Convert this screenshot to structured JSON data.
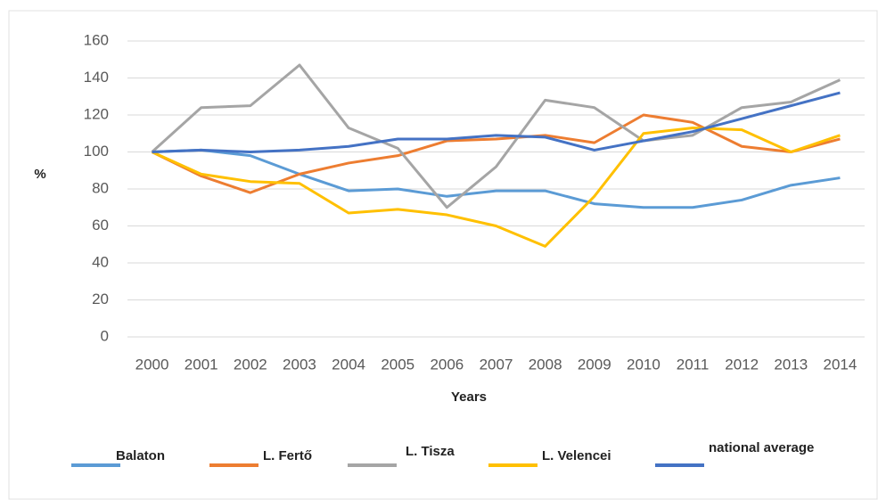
{
  "chart_data": {
    "type": "line",
    "x_label": "Years",
    "y_label": "%",
    "categories": [
      "2000",
      "2001",
      "2002",
      "2003",
      "2004",
      "2005",
      "2006",
      "2007",
      "2008",
      "2009",
      "2010",
      "2011",
      "2012",
      "2013",
      "2014"
    ],
    "series": [
      {
        "name": "Balaton",
        "color": "#5b9bd5",
        "values": [
          100,
          101,
          98,
          88,
          79,
          80,
          76,
          79,
          79,
          72,
          70,
          70,
          74,
          82,
          86
        ]
      },
      {
        "name": "L. Fertő",
        "color": "#ed7d31",
        "values": [
          100,
          87,
          78,
          88,
          94,
          98,
          106,
          107,
          109,
          105,
          120,
          116,
          103,
          100,
          107
        ]
      },
      {
        "name": "L. Tisza",
        "color": "#a5a5a5",
        "values": [
          100,
          124,
          125,
          147,
          113,
          102,
          70,
          92,
          128,
          124,
          106,
          109,
          124,
          127,
          139
        ]
      },
      {
        "name": "L. Velencei",
        "color": "#ffc000",
        "values": [
          100,
          88,
          84,
          83,
          67,
          69,
          66,
          60,
          49,
          76,
          110,
          113,
          112,
          100,
          109
        ]
      },
      {
        "name": "national average",
        "color": "#4472c4",
        "values": [
          100,
          101,
          100,
          101,
          103,
          107,
          107,
          109,
          108,
          101,
          106,
          111,
          118,
          125,
          132
        ]
      }
    ],
    "ylim": [
      0,
      160
    ],
    "yticks": [
      0,
      20,
      40,
      60,
      80,
      100,
      120,
      140,
      160
    ],
    "grid": true,
    "legend": "bottom"
  }
}
